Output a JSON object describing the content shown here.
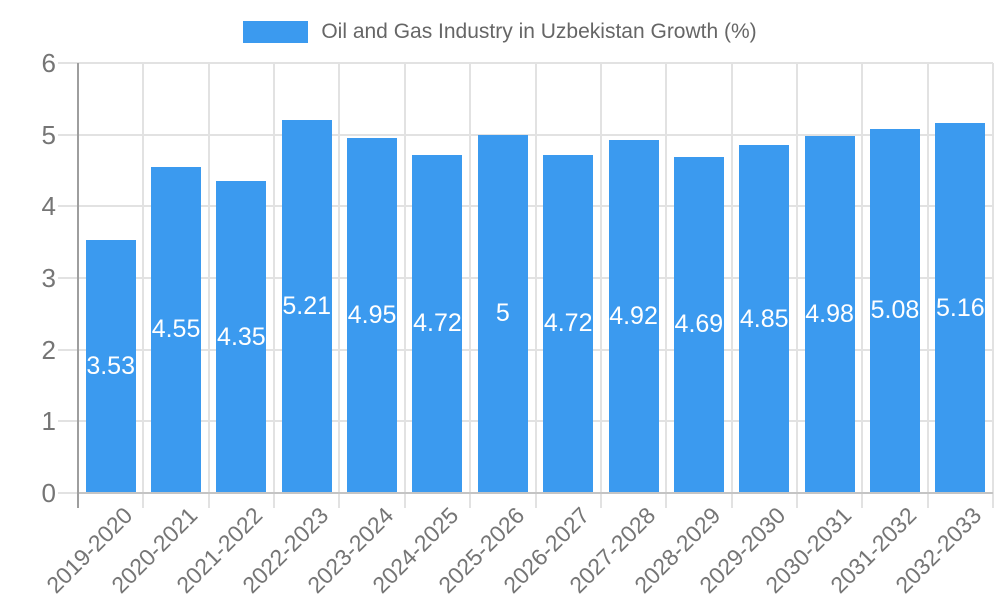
{
  "legend": {
    "label": "Oil and Gas Industry in Uzbekistan Growth (%)"
  },
  "chart_data": {
    "type": "bar",
    "title": "Oil and Gas Industry in Uzbekistan Growth (%)",
    "categories": [
      "2019-2020",
      "2020-2021",
      "2021-2022",
      "2022-2023",
      "2023-2024",
      "2024-2025",
      "2025-2026",
      "2026-2027",
      "2027-2028",
      "2028-2029",
      "2029-2030",
      "2030-2031",
      "2031-2032",
      "2032-2033"
    ],
    "values": [
      3.53,
      4.55,
      4.35,
      5.21,
      4.95,
      4.72,
      5,
      4.72,
      4.92,
      4.69,
      4.85,
      4.98,
      5.08,
      5.16
    ],
    "value_labels": [
      "3.53",
      "4.55",
      "4.35",
      "5.21",
      "4.95",
      "4.72",
      "5",
      "4.72",
      "4.92",
      "4.69",
      "4.85",
      "4.98",
      "5.08",
      "5.16"
    ],
    "xlabel": "",
    "ylabel": "",
    "ylim": [
      0,
      6
    ],
    "yticks": [
      0,
      1,
      2,
      3,
      4,
      5,
      6
    ],
    "grid": true,
    "legend_position": "top",
    "colors": {
      "bar": "#3B9AEF",
      "value_label": "#ffffff",
      "axis_text": "#757575",
      "legend_text": "#666666",
      "gridline": "#e2e2e2",
      "axis_line": "#9e9e9e",
      "baseline": "#c4c4c4"
    }
  }
}
